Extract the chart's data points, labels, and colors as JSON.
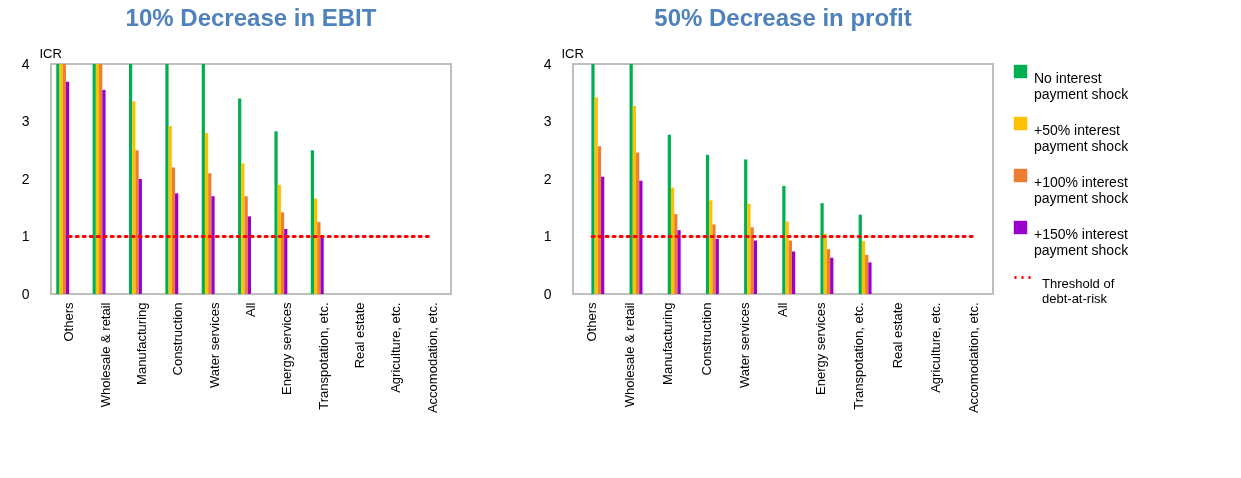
{
  "chart_data": [
    {
      "type": "bar",
      "title": "10% Decrease in EBIT",
      "ylabel": "ICR",
      "categories": [
        "Others",
        "Wholesale & retail",
        "Manufacturing",
        "Construction",
        "Water services",
        "All",
        "Energy services",
        "Transpotation, etc.",
        "Real estate",
        "Agriculture, etc.",
        "Accomodation, etc."
      ],
      "series": [
        {
          "color": "#00b050",
          "values": [
            4,
            4,
            4,
            4,
            4,
            3.4,
            2.83,
            2.5,
            null,
            null,
            null
          ]
        },
        {
          "color": "#ffc000",
          "values": [
            4,
            4,
            3.35,
            2.92,
            2.8,
            2.27,
            1.9,
            1.66,
            null,
            null,
            null
          ]
        },
        {
          "color": "#ed7d31",
          "values": [
            4,
            4,
            2.5,
            2.2,
            2.1,
            1.7,
            1.42,
            1.25,
            null,
            null,
            null
          ]
        },
        {
          "color": "#9900cc",
          "values": [
            3.69,
            3.55,
            2.0,
            1.75,
            1.7,
            1.35,
            1.13,
            0.98,
            null,
            null,
            null
          ]
        }
      ],
      "ylim": [
        0,
        4
      ],
      "yticks": [
        0,
        1,
        2,
        3,
        4
      ],
      "grid": false,
      "legend": false,
      "ref_lines": [
        {
          "axis": "y",
          "value": 1,
          "color": "#ff0000",
          "line_style": "dotted"
        }
      ]
    },
    {
      "type": "bar",
      "title": "50% Decrease in profit",
      "ylabel": "ICR",
      "categories": [
        "Others",
        "Wholesale & retail",
        "Manufacturing",
        "Construction",
        "Water services",
        "All",
        "Energy services",
        "Transpotation, etc.",
        "Real estate",
        "Agriculture, etc.",
        "Accomodation, etc."
      ],
      "series": [
        {
          "name": "No interest payment shock",
          "color": "#00b050",
          "values": [
            4,
            4,
            2.77,
            2.42,
            2.34,
            1.88,
            1.58,
            1.38,
            null,
            null,
            null
          ]
        },
        {
          "name": "+50% interest payment shock",
          "color": "#ffc000",
          "values": [
            3.42,
            3.27,
            1.85,
            1.63,
            1.57,
            1.26,
            1.05,
            0.92,
            null,
            null,
            null
          ]
        },
        {
          "name": "+100% interest payment shock",
          "color": "#ed7d31",
          "values": [
            2.57,
            2.46,
            1.39,
            1.21,
            1.16,
            0.93,
            0.78,
            0.68,
            null,
            null,
            null
          ]
        },
        {
          "name": "+150% interest payment shock",
          "color": "#9900cc",
          "values": [
            2.04,
            1.97,
            1.11,
            0.96,
            0.93,
            0.74,
            0.63,
            0.55,
            null,
            null,
            null
          ]
        }
      ],
      "ylim": [
        0,
        4
      ],
      "yticks": [
        0,
        1,
        2,
        3,
        4
      ],
      "grid": false,
      "legend": "right",
      "ref_lines": [
        {
          "axis": "y",
          "value": 1,
          "label": "Threshold of debt-at-risk",
          "color": "#ff0000",
          "line_style": "dotted"
        }
      ]
    }
  ]
}
